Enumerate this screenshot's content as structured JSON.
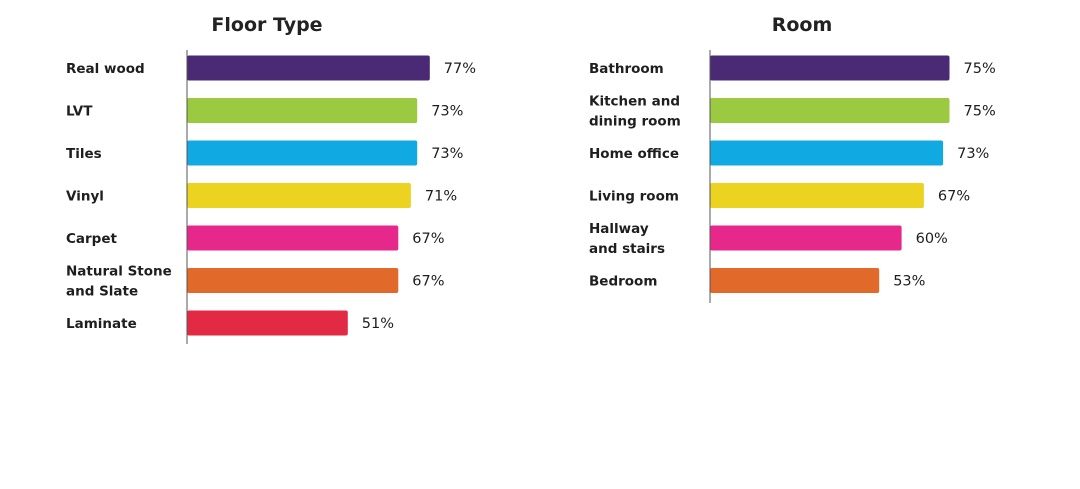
{
  "colors": [
    "#4b2a75",
    "#9bc93f",
    "#11a9e1",
    "#ebd31f",
    "#e6288b",
    "#e1692a",
    "#e22a45"
  ],
  "chart_data": [
    {
      "type": "bar",
      "orientation": "horizontal",
      "title": "Floor Type",
      "categories": [
        [
          "Real wood"
        ],
        [
          "LVT"
        ],
        [
          "Tiles"
        ],
        [
          "Vinyl"
        ],
        [
          "Carpet"
        ],
        [
          "Natural Stone",
          "and Slate"
        ],
        [
          "Laminate"
        ]
      ],
      "values": [
        77,
        73,
        73,
        71,
        67,
        67,
        51
      ],
      "value_labels": [
        "77%",
        "73%",
        "73%",
        "71%",
        "67%",
        "67%",
        "51%"
      ],
      "xlim": [
        0,
        100
      ],
      "grid": false
    },
    {
      "type": "bar",
      "orientation": "horizontal",
      "title": "Room",
      "categories": [
        [
          "Bathroom"
        ],
        [
          "Kitchen and",
          "dining room"
        ],
        [
          "Home office"
        ],
        [
          "Living room"
        ],
        [
          "Hallway",
          "and stairs"
        ],
        [
          "Bedroom"
        ]
      ],
      "values": [
        75,
        75,
        73,
        67,
        60,
        53
      ],
      "value_labels": [
        "75%",
        "75%",
        "73%",
        "67%",
        "60%",
        "53%"
      ],
      "xlim": [
        0,
        100
      ],
      "grid": false
    }
  ]
}
